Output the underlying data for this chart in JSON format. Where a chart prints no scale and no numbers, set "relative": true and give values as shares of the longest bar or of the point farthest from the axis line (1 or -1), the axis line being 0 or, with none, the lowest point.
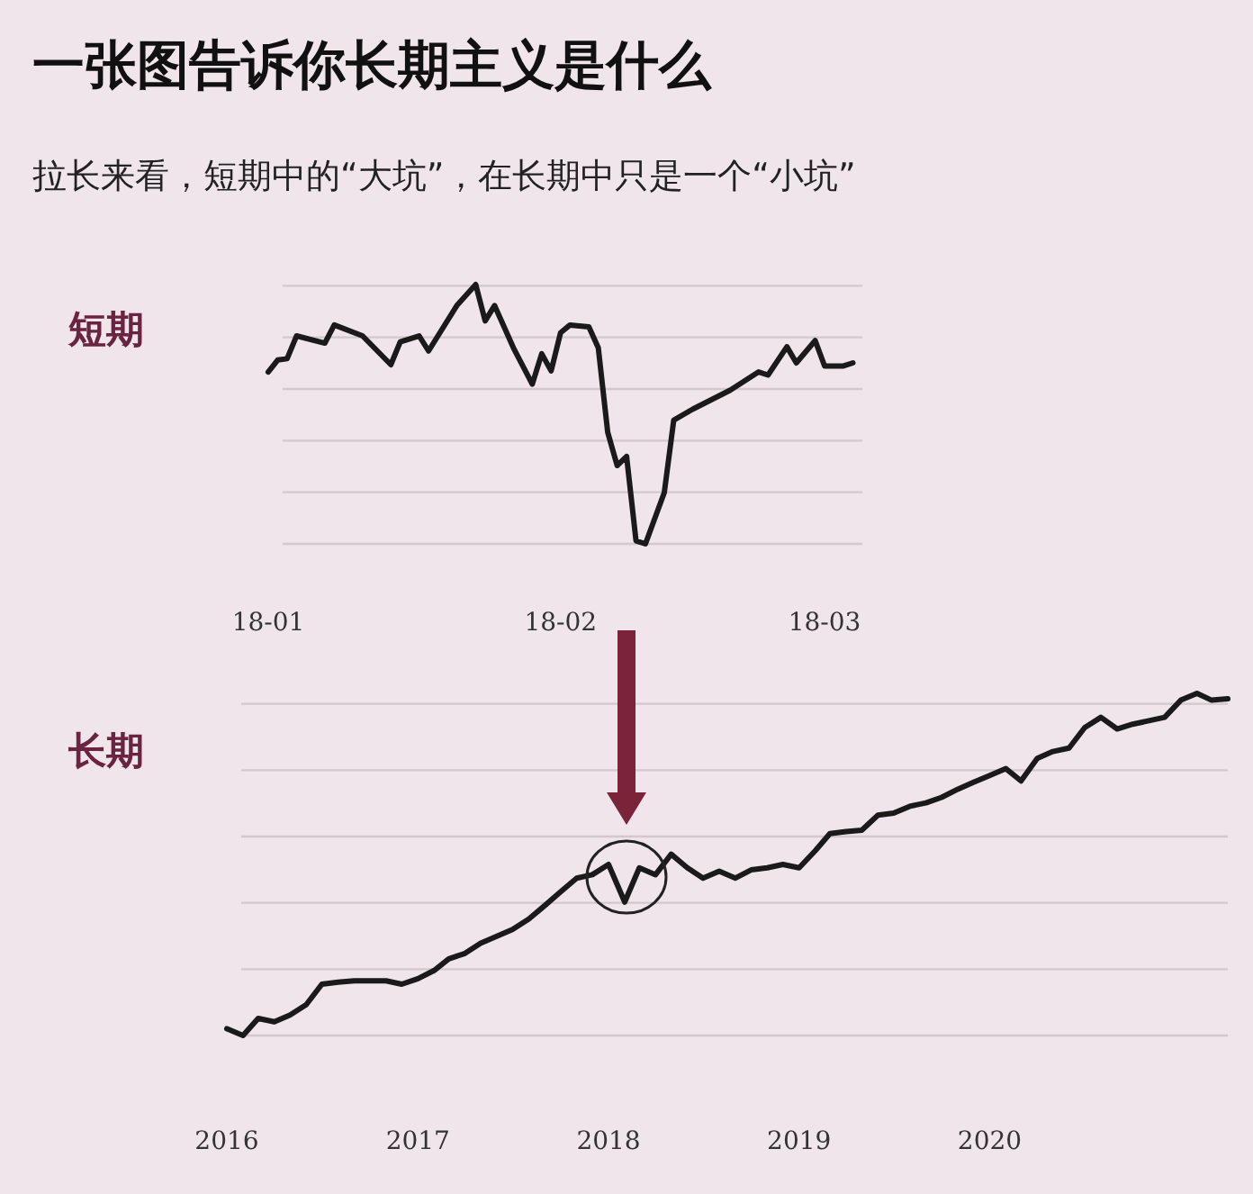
{
  "chart_data": [
    {
      "type": "line",
      "title": "一张图告诉你长期主义是什么",
      "subtitle": "拉长来看，短期中的“大坑”，在长期中只是一个“小坑”",
      "ylabel": "短期",
      "relative": true,
      "grid": "y",
      "xlim": [
        "2018-01-01",
        "2018-03-05"
      ],
      "xticks": [
        {
          "value": "2018-01-01",
          "label": "18-01"
        },
        {
          "value": "2018-02-01",
          "label": "18-02"
        },
        {
          "value": "2018-03-01",
          "label": "18-03"
        }
      ],
      "x": [
        "2018-01-01",
        "2018-01-02",
        "2018-01-03",
        "2018-01-04",
        "2018-01-07",
        "2018-01-08",
        "2018-01-11",
        "2018-01-14",
        "2018-01-15",
        "2018-01-17",
        "2018-01-18",
        "2018-01-21",
        "2018-01-23",
        "2018-01-24",
        "2018-01-25",
        "2018-01-27",
        "2018-01-29",
        "2018-01-30",
        "2018-01-31",
        "2018-02-01",
        "2018-02-02",
        "2018-02-04",
        "2018-02-05",
        "2018-02-06",
        "2018-02-07",
        "2018-02-08",
        "2018-02-09",
        "2018-02-10",
        "2018-02-12",
        "2018-02-13",
        "2018-02-15",
        "2018-02-19",
        "2018-02-22",
        "2018-02-23",
        "2018-02-25",
        "2018-02-26",
        "2018-02-28",
        "2018-03-01",
        "2018-03-03",
        "2018-03-04"
      ],
      "series": [
        {
          "color": "#1a1a1a",
          "values": [
            0.663,
            0.709,
            0.714,
            0.802,
            0.774,
            0.844,
            0.802,
            0.691,
            0.779,
            0.802,
            0.744,
            0.919,
            1.0,
            0.86,
            0.919,
            0.756,
            0.616,
            0.733,
            0.667,
            0.814,
            0.844,
            0.837,
            0.756,
            0.43,
            0.302,
            0.337,
            0.012,
            0.0,
            0.198,
            0.477,
            0.519,
            0.593,
            0.663,
            0.651,
            0.76,
            0.698,
            0.784,
            0.686,
            0.686,
            0.698
          ]
        }
      ]
    },
    {
      "type": "line",
      "ylabel": "长期",
      "relative": true,
      "grid": "y",
      "xlim": [
        "2016-01",
        "2021-04"
      ],
      "xticks": [
        {
          "value": "2016-01",
          "label": "2016"
        },
        {
          "value": "2017-01",
          "label": "2017"
        },
        {
          "value": "2018-01",
          "label": "2018"
        },
        {
          "value": "2019-01",
          "label": "2019"
        },
        {
          "value": "2020-01",
          "label": "2020"
        }
      ],
      "x": [
        "2016-01",
        "2016-02",
        "2016-03",
        "2016-04",
        "2016-05",
        "2016-06",
        "2016-07",
        "2016-08",
        "2016-09",
        "2016-10",
        "2016-11",
        "2016-12",
        "2017-01",
        "2017-02",
        "2017-03",
        "2017-04",
        "2017-05",
        "2017-06",
        "2017-07",
        "2017-08",
        "2017-09",
        "2017-10",
        "2017-11",
        "2017-12",
        "2018-01",
        "2018-02",
        "2018-03",
        "2018-04",
        "2018-05",
        "2018-06",
        "2018-07",
        "2018-08",
        "2018-09",
        "2018-10",
        "2018-11",
        "2018-12",
        "2019-01",
        "2019-02",
        "2019-03",
        "2019-04",
        "2019-05",
        "2019-06",
        "2019-07",
        "2019-08",
        "2019-09",
        "2019-10",
        "2019-11",
        "2019-12",
        "2020-01",
        "2020-02",
        "2020-03",
        "2020-04",
        "2020-05",
        "2020-06",
        "2020-07",
        "2020-08",
        "2020-09",
        "2020-10",
        "2020-11",
        "2020-12",
        "2021-01",
        "2021-02",
        "2021-03",
        "2021-04"
      ],
      "series": [
        {
          "color": "#1a1a1a",
          "values": [
            0.02,
            0.0,
            0.05,
            0.04,
            0.06,
            0.09,
            0.15,
            0.156,
            0.16,
            0.16,
            0.16,
            0.15,
            0.166,
            0.19,
            0.224,
            0.24,
            0.27,
            0.29,
            0.31,
            0.34,
            0.38,
            0.42,
            0.46,
            0.47,
            0.5,
            0.39,
            0.49,
            0.47,
            0.53,
            0.49,
            0.46,
            0.48,
            0.46,
            0.484,
            0.49,
            0.5,
            0.49,
            0.54,
            0.59,
            0.596,
            0.6,
            0.644,
            0.65,
            0.67,
            0.68,
            0.696,
            0.72,
            0.74,
            0.76,
            0.78,
            0.744,
            0.81,
            0.83,
            0.84,
            0.9,
            0.93,
            0.896,
            0.91,
            0.92,
            0.93,
            0.98,
            1.0,
            0.98,
            0.984
          ]
        }
      ]
    }
  ]
}
